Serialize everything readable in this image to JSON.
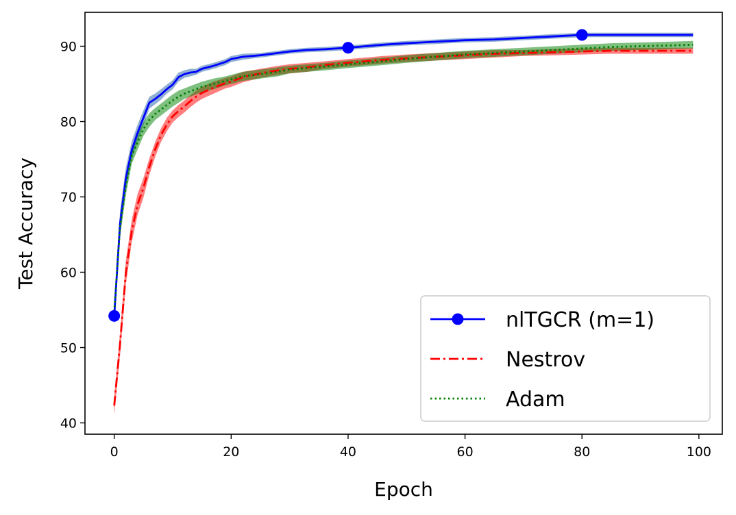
{
  "chart_data": {
    "type": "line",
    "title": "",
    "xlabel": "Epoch",
    "ylabel": "Test Accuracy",
    "xlim": [
      -5,
      104
    ],
    "ylim": [
      38.5,
      94.5
    ],
    "xticks": [
      0,
      20,
      40,
      60,
      80,
      100
    ],
    "yticks": [
      40,
      50,
      60,
      70,
      80,
      90
    ],
    "grid": false,
    "legend_position": "bottom-right",
    "series": [
      {
        "name": "nlTGCR (m=1)",
        "color": "#0000ff",
        "band_color": "#1f5fa8",
        "style": "solid",
        "marker_every": 40,
        "points": [
          [
            0,
            54.2
          ],
          [
            1,
            66.5
          ],
          [
            2,
            72.5
          ],
          [
            3,
            76.2
          ],
          [
            4,
            78.5
          ],
          [
            5,
            80.5
          ],
          [
            6,
            82.5
          ],
          [
            7,
            83.0
          ],
          [
            8,
            83.6
          ],
          [
            9,
            84.3
          ],
          [
            10,
            84.9
          ],
          [
            11,
            85.9
          ],
          [
            12,
            86.3
          ],
          [
            13,
            86.5
          ],
          [
            14,
            86.6
          ],
          [
            15,
            87.0
          ],
          [
            17,
            87.4
          ],
          [
            19,
            87.9
          ],
          [
            20,
            88.3
          ],
          [
            22,
            88.6
          ],
          [
            25,
            88.8
          ],
          [
            28,
            89.1
          ],
          [
            30,
            89.3
          ],
          [
            33,
            89.5
          ],
          [
            36,
            89.6
          ],
          [
            40,
            89.8
          ],
          [
            43,
            90.0
          ],
          [
            46,
            90.2
          ],
          [
            50,
            90.4
          ],
          [
            55,
            90.6
          ],
          [
            60,
            90.8
          ],
          [
            65,
            90.9
          ],
          [
            70,
            91.1
          ],
          [
            75,
            91.3
          ],
          [
            80,
            91.5
          ],
          [
            85,
            91.5
          ],
          [
            90,
            91.5
          ],
          [
            95,
            91.5
          ],
          [
            99,
            91.5
          ]
        ],
        "band": [
          1.4,
          1.6,
          1.4,
          1.2,
          1.1,
          1.0,
          0.8,
          0.7,
          0.7,
          0.6,
          0.6,
          0.6,
          0.5,
          0.5,
          0.4,
          0.4,
          0.4,
          0.4,
          0.4,
          0.4,
          0.3,
          0.3,
          0.3,
          0.3,
          0.3,
          0.3,
          0.3,
          0.3,
          0.3,
          0.3,
          0.3,
          0.3,
          0.3,
          0.3,
          0.3,
          0.3,
          0.3,
          0.3,
          0.3
        ]
      },
      {
        "name": "Nestrov",
        "color": "#ff0000",
        "band_color": "#ff0000",
        "style": "dashdot",
        "points": [
          [
            0,
            42.3
          ],
          [
            1,
            50.5
          ],
          [
            2,
            60.0
          ],
          [
            3,
            65.5
          ],
          [
            4,
            69.0
          ],
          [
            5,
            71.2
          ],
          [
            6,
            74.0
          ],
          [
            7,
            76.3
          ],
          [
            8,
            78.2
          ],
          [
            9,
            79.6
          ],
          [
            10,
            80.7
          ],
          [
            11,
            81.4
          ],
          [
            12,
            82.0
          ],
          [
            13,
            82.7
          ],
          [
            14,
            83.3
          ],
          [
            15,
            83.8
          ],
          [
            17,
            84.5
          ],
          [
            19,
            85.1
          ],
          [
            20,
            85.3
          ],
          [
            22,
            85.9
          ],
          [
            25,
            86.4
          ],
          [
            28,
            86.8
          ],
          [
            30,
            87.0
          ],
          [
            33,
            87.2
          ],
          [
            36,
            87.5
          ],
          [
            40,
            87.8
          ],
          [
            43,
            88.0
          ],
          [
            46,
            88.2
          ],
          [
            50,
            88.4
          ],
          [
            55,
            88.6
          ],
          [
            60,
            88.8
          ],
          [
            65,
            89.0
          ],
          [
            70,
            89.1
          ],
          [
            75,
            89.2
          ],
          [
            80,
            89.3
          ],
          [
            85,
            89.4
          ],
          [
            90,
            89.4
          ],
          [
            95,
            89.4
          ],
          [
            99,
            89.4
          ]
        ],
        "band": [
          1.3,
          1.5,
          1.6,
          1.5,
          1.4,
          1.3,
          1.1,
          1.0,
          0.9,
          0.9,
          0.8,
          0.8,
          0.8,
          0.8,
          0.8,
          0.8,
          0.8,
          0.7,
          0.7,
          0.7,
          0.6,
          0.6,
          0.6,
          0.6,
          0.5,
          0.5,
          0.5,
          0.5,
          0.5,
          0.5,
          0.5,
          0.5,
          0.4,
          0.4,
          0.4,
          0.4,
          0.4,
          0.4,
          0.4
        ]
      },
      {
        "name": "Adam",
        "color": "#008000",
        "band_color": "#008000",
        "style": "dotted",
        "points": [
          [
            0,
            54.8
          ],
          [
            1,
            66.0
          ],
          [
            2,
            71.5
          ],
          [
            3,
            75.5
          ],
          [
            4,
            77.3
          ],
          [
            5,
            79.0
          ],
          [
            6,
            80.2
          ],
          [
            7,
            81.0
          ],
          [
            8,
            81.6
          ],
          [
            9,
            82.2
          ],
          [
            10,
            82.8
          ],
          [
            11,
            83.3
          ],
          [
            12,
            83.7
          ],
          [
            13,
            84.0
          ],
          [
            14,
            84.3
          ],
          [
            15,
            84.6
          ],
          [
            17,
            85.0
          ],
          [
            19,
            85.4
          ],
          [
            20,
            85.6
          ],
          [
            22,
            86.0
          ],
          [
            25,
            86.3
          ],
          [
            28,
            86.6
          ],
          [
            30,
            86.9
          ],
          [
            33,
            87.1
          ],
          [
            36,
            87.3
          ],
          [
            40,
            87.6
          ],
          [
            43,
            87.8
          ],
          [
            46,
            88.0
          ],
          [
            50,
            88.3
          ],
          [
            55,
            88.6
          ],
          [
            60,
            88.9
          ],
          [
            65,
            89.1
          ],
          [
            70,
            89.3
          ],
          [
            75,
            89.5
          ],
          [
            80,
            89.7
          ],
          [
            85,
            89.9
          ],
          [
            90,
            90.0
          ],
          [
            95,
            90.1
          ],
          [
            99,
            90.2
          ]
        ],
        "band": [
          1.0,
          1.3,
          1.2,
          1.1,
          1.0,
          0.9,
          0.9,
          0.8,
          0.8,
          0.8,
          0.8,
          0.8,
          0.7,
          0.7,
          0.7,
          0.7,
          0.7,
          0.6,
          0.6,
          0.6,
          0.6,
          0.6,
          0.5,
          0.5,
          0.5,
          0.5,
          0.5,
          0.5,
          0.5,
          0.5,
          0.5,
          0.5,
          0.5,
          0.5,
          0.5,
          0.5,
          0.5,
          0.5,
          0.5
        ]
      }
    ]
  }
}
